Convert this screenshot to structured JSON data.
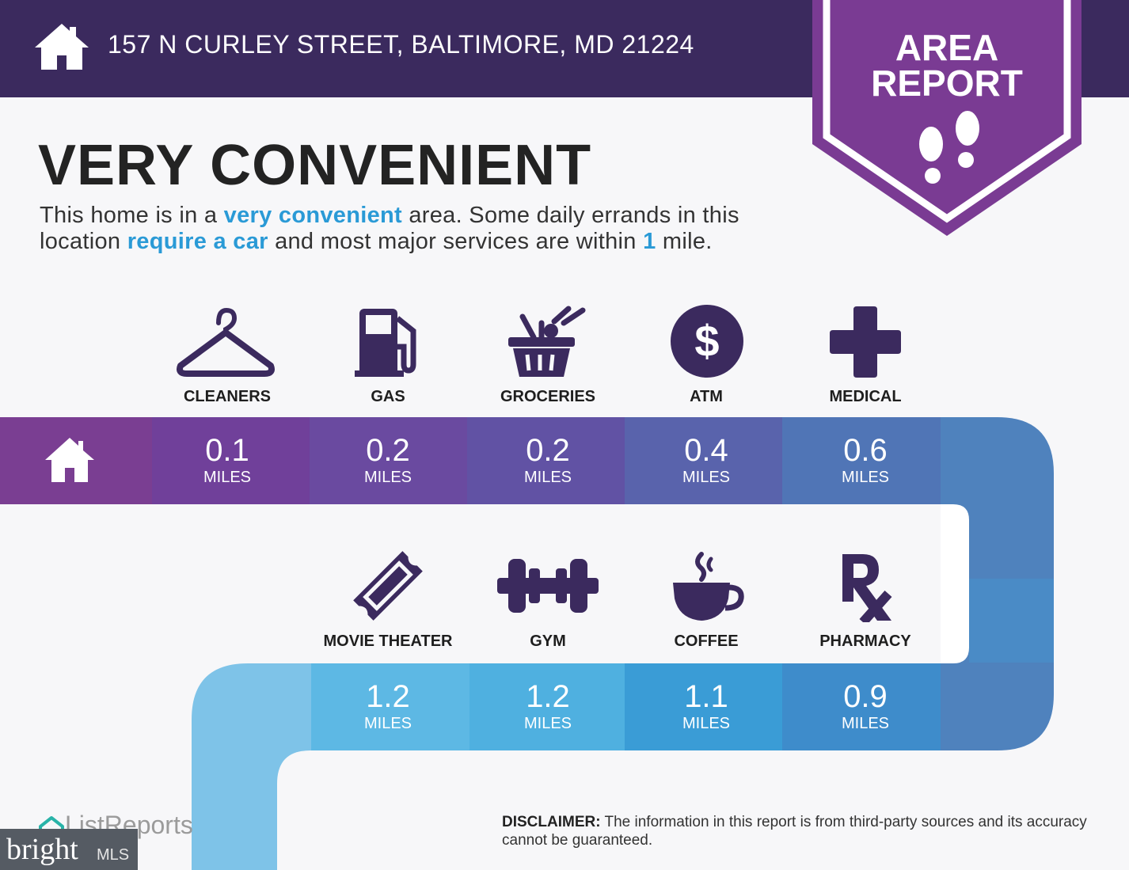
{
  "header": {
    "address": "157 N CURLEY STREET, BALTIMORE, MD 21224",
    "home_icon": "house-icon",
    "badge_line1": "AREA",
    "badge_line2": "REPORT",
    "badge_icon": "footprints-icon"
  },
  "headline": "VERY CONVENIENT",
  "description": {
    "part1": "This home is in a ",
    "highlight1": "very convenient",
    "part2": " area. Some daily errands in this location ",
    "highlight2": "require a car",
    "part3": " and most major services are within ",
    "highlight3": "1",
    "part4": " mile."
  },
  "colors": {
    "header_bg": "#3b2a5e",
    "badge": "#7a3b93",
    "highlight": "#2a9ad6",
    "icon": "#3b2a5e"
  },
  "row1": [
    {
      "label": "CLEANERS",
      "value": "0.1",
      "unit": "MILES",
      "icon": "hanger-icon"
    },
    {
      "label": "GAS",
      "value": "0.2",
      "unit": "MILES",
      "icon": "gas-pump-icon"
    },
    {
      "label": "GROCERIES",
      "value": "0.2",
      "unit": "MILES",
      "icon": "grocery-basket-icon"
    },
    {
      "label": "ATM",
      "value": "0.4",
      "unit": "MILES",
      "icon": "dollar-icon"
    },
    {
      "label": "MEDICAL",
      "value": "0.6",
      "unit": "MILES",
      "icon": "medical-cross-icon"
    }
  ],
  "row2": [
    {
      "label": "MOVIE THEATER",
      "value": "1.2",
      "unit": "MILES",
      "icon": "ticket-icon"
    },
    {
      "label": "GYM",
      "value": "1.2",
      "unit": "MILES",
      "icon": "dumbbell-icon"
    },
    {
      "label": "COFFEE",
      "value": "1.1",
      "unit": "MILES",
      "icon": "coffee-cup-icon"
    },
    {
      "label": "PHARMACY",
      "value": "0.9",
      "unit": "MILES",
      "icon": "rx-icon"
    }
  ],
  "footer": {
    "listreports": "ListReports",
    "bright_word": "bright",
    "bright_mls": "MLS",
    "disclaimer_label": "DISCLAIMER:",
    "disclaimer_text": " The information in this report is from third-party sources and its accuracy cannot be guaranteed."
  }
}
